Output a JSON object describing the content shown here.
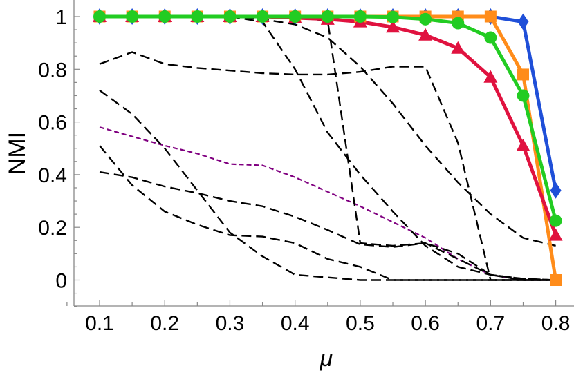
{
  "chart_data": {
    "type": "line",
    "title": "",
    "xlabel": "μ",
    "ylabel": "NMI",
    "xlim": [
      0.05,
      0.82
    ],
    "ylim": [
      -0.1,
      1.05
    ],
    "x_ticks": [
      0.1,
      0.2,
      0.3,
      0.4,
      0.5,
      0.6,
      0.7,
      0.8
    ],
    "x_tick_labels": [
      "0.1",
      "0.2",
      "0.3",
      "0.4",
      "0.5",
      "0.6",
      "0.7",
      "0.8"
    ],
    "y_ticks": [
      0,
      0.2,
      0.4,
      0.6,
      0.8,
      1
    ],
    "y_tick_labels": [
      "0",
      "0.2",
      "0.4",
      "0.6",
      "0.8",
      "1"
    ],
    "grid": false,
    "legend": "none",
    "x": [
      0.1,
      0.15,
      0.2,
      0.25,
      0.3,
      0.35,
      0.4,
      0.45,
      0.5,
      0.55,
      0.6,
      0.65,
      0.7,
      0.75,
      0.8
    ],
    "series": [
      {
        "color": "#1f4fd8",
        "style": "solid",
        "marker": "diamond",
        "values": [
          1,
          1,
          1,
          1,
          1,
          1,
          1,
          1,
          1,
          1,
          1,
          1,
          1,
          0.98,
          0.34
        ]
      },
      {
        "color": "#ff8c1a",
        "style": "solid",
        "marker": "square",
        "values": [
          1,
          1,
          1,
          1,
          1,
          1,
          1,
          1,
          1,
          1,
          1,
          1,
          1,
          0.78,
          0.0
        ]
      },
      {
        "color": "#e0123f",
        "style": "solid",
        "marker": "triangle",
        "values": [
          1,
          1,
          1,
          1,
          1,
          1,
          0.995,
          0.99,
          0.98,
          0.96,
          0.93,
          0.88,
          0.77,
          0.51,
          0.17
        ]
      },
      {
        "color": "#22cc22",
        "style": "solid",
        "marker": "circle",
        "values": [
          1,
          1,
          1,
          1,
          1,
          1,
          1,
          1,
          1,
          0.998,
          0.99,
          0.975,
          0.92,
          0.7,
          0.225
        ]
      },
      {
        "color": "#800080",
        "style": "dashed",
        "marker": "none",
        "values": [
          0.58,
          0.545,
          0.51,
          0.48,
          0.44,
          0.435,
          0.39,
          0.335,
          0.28,
          0.22,
          0.16,
          0.08,
          0.02,
          0.0,
          0.0
        ]
      },
      {
        "color": "#000000",
        "style": "dashed",
        "marker": "none",
        "values": [
          0.82,
          0.865,
          0.82,
          0.805,
          0.795,
          0.785,
          0.78,
          0.78,
          0.79,
          0.81,
          0.81,
          0.52,
          0.0,
          0.0,
          0.0
        ]
      },
      {
        "color": "#000000",
        "style": "dashed",
        "marker": "none",
        "values": [
          1,
          1,
          1,
          1,
          1,
          1,
          0.995,
          0.985,
          0.14,
          0.13,
          0.14,
          0.1,
          0.02,
          0.0,
          0.0
        ]
      },
      {
        "color": "#000000",
        "style": "dashed",
        "marker": "none",
        "values": [
          1,
          1,
          1,
          1,
          1,
          0.99,
          0.97,
          0.92,
          0.81,
          0.67,
          0.51,
          0.37,
          0.25,
          0.16,
          0.13
        ]
      },
      {
        "color": "#000000",
        "style": "dashed",
        "marker": "none",
        "values": [
          1,
          1,
          1,
          1,
          1,
          0.98,
          0.8,
          0.56,
          0.4,
          0.26,
          0.13,
          0.05,
          0.02,
          0.005,
          0.0
        ]
      },
      {
        "color": "#000000",
        "style": "dashed",
        "marker": "none",
        "values": [
          0.72,
          0.63,
          0.5,
          0.34,
          0.18,
          0.09,
          0.02,
          0.01,
          0.0,
          0.0,
          0.0,
          0.0,
          0.0,
          0.0,
          0.0
        ]
      },
      {
        "color": "#000000",
        "style": "dashed",
        "marker": "none",
        "values": [
          0.51,
          0.36,
          0.26,
          0.21,
          0.17,
          0.165,
          0.14,
          0.08,
          0.05,
          0.0,
          0.0,
          0.0,
          0.0,
          0.0,
          0.0
        ]
      },
      {
        "color": "#000000",
        "style": "dashed",
        "marker": "none",
        "values": [
          0.41,
          0.39,
          0.355,
          0.33,
          0.3,
          0.28,
          0.24,
          0.19,
          0.135,
          0.125,
          0.14,
          0.08,
          0.02,
          0.005,
          0.0
        ]
      }
    ]
  }
}
